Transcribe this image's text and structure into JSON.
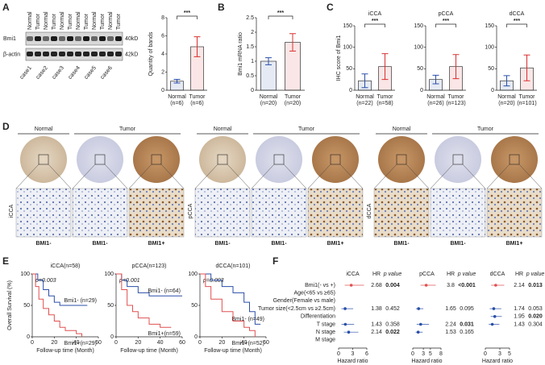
{
  "a": {
    "label": "A",
    "lanes": [
      "Normal",
      "Tumor",
      "Normal",
      "Tumor",
      "Normal",
      "Tumor",
      "Normal",
      "Tumor",
      "Normal",
      "Tumor",
      "Normal",
      "Tumor"
    ],
    "bands": [
      "Bmi1",
      "β-actin"
    ],
    "sizes": [
      "40kD",
      "42kD"
    ],
    "cases": [
      "case1",
      "case2",
      "case3",
      "case4",
      "case5",
      "case6"
    ],
    "chart": {
      "type": "bar",
      "ylabel": "Quantity of bands",
      "categories": [
        "Normal",
        "Tumor"
      ],
      "counts": [
        "(n=6)",
        "(n=6)"
      ],
      "values": [
        1.0,
        4.8
      ],
      "errors": [
        0.2,
        1.1
      ],
      "colors": [
        "#2a4fa8",
        "#d93030"
      ],
      "ylim": [
        0,
        8
      ],
      "yticks": [
        0,
        2,
        4,
        6,
        8
      ],
      "significance": "***"
    }
  },
  "b": {
    "label": "B",
    "chart": {
      "type": "bar",
      "ylabel": "Bmi1 mRNA ratio",
      "categories": [
        "Normal",
        "Tumor"
      ],
      "counts": [
        "(n=20)",
        "(n=20)"
      ],
      "values": [
        1.0,
        1.65
      ],
      "errors": [
        0.12,
        0.3
      ],
      "colors": [
        "#2a4fa8",
        "#d93030"
      ],
      "ylim": [
        0,
        2.5
      ],
      "yticks": [
        0,
        0.5,
        1,
        1.5,
        2,
        2.5
      ],
      "significance": "***"
    }
  },
  "c": {
    "label": "C",
    "ylabel": "IHC score of Bmi1",
    "ylim": [
      0,
      150
    ],
    "yticks": [
      0,
      50,
      100,
      150
    ],
    "colors": [
      "#2a4fa8",
      "#d93030"
    ],
    "charts": [
      {
        "type": "bar",
        "title": "iCCA",
        "categories": [
          "Normal",
          "Tumor"
        ],
        "counts": [
          "(n=22)",
          "(n=58)"
        ],
        "values": [
          22,
          55
        ],
        "errors": [
          16,
          30
        ],
        "significance": "***"
      },
      {
        "type": "bar",
        "title": "pCCA",
        "categories": [
          "Normal",
          "Tumor"
        ],
        "counts": [
          "(n=26)",
          "(n=123)"
        ],
        "values": [
          25,
          55
        ],
        "errors": [
          10,
          28
        ],
        "significance": "***"
      },
      {
        "type": "bar",
        "title": "dCCA",
        "categories": [
          "Normal",
          "Tumor"
        ],
        "counts": [
          "(n=20)",
          "(n=101)"
        ],
        "values": [
          22,
          52
        ],
        "errors": [
          12,
          30
        ],
        "significance": "***"
      }
    ]
  },
  "d": {
    "label": "D",
    "groups": [
      {
        "name": "iCCA",
        "headers": [
          "Normal",
          "Tumor"
        ],
        "captions": [
          "BMI1-",
          "BMI1-",
          "BMI1+"
        ]
      },
      {
        "name": "pCCA",
        "headers": [
          "Normal",
          "Tumor"
        ],
        "captions": [
          "BMI1-",
          "BMI1-",
          "BMI1+"
        ]
      },
      {
        "name": "dCCA",
        "headers": [
          "Normal",
          "Tumor"
        ],
        "captions": [
          "BMI1-",
          "BMI1-",
          "BMI1+"
        ]
      }
    ]
  },
  "e": {
    "label": "E",
    "ylabel": "Overall Survival (%)",
    "xlabel": "Follow-up time (Month)",
    "xlim": [
      0,
      60
    ],
    "xticks": [
      0,
      20,
      40,
      60
    ],
    "ylim": [
      0,
      100
    ],
    "yticks": [
      0,
      50,
      100
    ],
    "charts": [
      {
        "type": "line",
        "title": "iCCA(n=58)",
        "p": "p=0.003",
        "series": [
          {
            "name": "Bmi1- (n=29)",
            "color": "#2a4fa8",
            "x": [
              0,
              5,
              10,
              15,
              20,
              25,
              30,
              40,
              50
            ],
            "values": [
              100,
              90,
              75,
              65,
              55,
              50,
              50,
              50,
              50
            ]
          },
          {
            "name": "Bmi1+(n=29)",
            "color": "#e05050",
            "x": [
              0,
              3,
              6,
              10,
              15,
              20,
              25,
              30,
              40,
              45
            ],
            "values": [
              100,
              80,
              60,
              45,
              35,
              25,
              15,
              10,
              5,
              0
            ]
          }
        ]
      },
      {
        "type": "line",
        "title": "pCCA(n=123)",
        "p": "p<0.001",
        "series": [
          {
            "name": "Bmi1- (n=64)",
            "color": "#2a4fa8",
            "x": [
              0,
              5,
              10,
              20,
              30,
              40,
              50,
              60
            ],
            "values": [
              100,
              90,
              80,
              70,
              65,
              65,
              65,
              65
            ]
          },
          {
            "name": "Bmi1+(n=59)",
            "color": "#e05050",
            "x": [
              0,
              5,
              10,
              15,
              20,
              30,
              40,
              50
            ],
            "values": [
              100,
              75,
              50,
              40,
              30,
              20,
              15,
              15
            ]
          }
        ]
      },
      {
        "type": "line",
        "title": "dCCA(n=101)",
        "p": "p=0.003",
        "series": [
          {
            "name": "Bmi1- (n=49)",
            "color": "#2a4fa8",
            "x": [
              0,
              10,
              20,
              30,
              40,
              45,
              50,
              55
            ],
            "values": [
              100,
              90,
              80,
              70,
              55,
              40,
              20,
              20
            ]
          },
          {
            "name": "Bmi1+(n=52)",
            "color": "#e05050",
            "x": [
              0,
              5,
              10,
              20,
              30,
              40,
              45,
              50
            ],
            "values": [
              100,
              80,
              60,
              40,
              25,
              15,
              10,
              0
            ]
          }
        ]
      }
    ]
  },
  "f": {
    "label": "F",
    "rows": [
      "Bmi1(- vs +)",
      "Age(<65 vs ≥65)",
      "Gender(Female vs male)",
      "Tumor size(<2.5cm vs ≥2.5cm)",
      "Differentiation",
      "T stage",
      "N stage",
      "M stage"
    ],
    "hr_header": "HR",
    "p_header": "p value",
    "xlabel": "Hazard ratio",
    "highlight_color": "#e05050",
    "color": "#2a4fa8",
    "plots": [
      {
        "type": "forest",
        "title": "iCCA",
        "hr": [
          2.68,
          null,
          null,
          1.38,
          null,
          1.43,
          2.14,
          null
        ],
        "ci_low": [
          1.3,
          null,
          null,
          0.6,
          null,
          0.6,
          1.1,
          null
        ],
        "ci_high": [
          5.4,
          null,
          null,
          3.1,
          null,
          3.3,
          4.2,
          null
        ],
        "p": [
          "0.004",
          null,
          null,
          "0.452",
          null,
          "0.358",
          "0.022",
          null
        ],
        "p_bold": [
          true,
          false,
          false,
          false,
          false,
          false,
          true,
          false
        ],
        "xlim": [
          0,
          6
        ],
        "xticks": [
          0,
          3,
          6
        ]
      },
      {
        "type": "forest",
        "title": "pCCA",
        "hr": [
          3.8,
          null,
          null,
          1.65,
          null,
          2.24,
          1.53,
          null
        ],
        "ci_low": [
          2.2,
          null,
          null,
          0.9,
          null,
          1.1,
          0.8,
          null
        ],
        "ci_high": [
          6.5,
          null,
          null,
          3.0,
          null,
          4.6,
          2.8,
          null
        ],
        "p": [
          "<0.001",
          null,
          null,
          "0.095",
          null,
          "0.031",
          "0.165",
          null
        ],
        "p_bold": [
          true,
          false,
          false,
          false,
          false,
          true,
          false,
          false
        ],
        "xlim": [
          0,
          8
        ],
        "xticks": [
          0,
          3,
          5,
          8
        ]
      },
      {
        "type": "forest",
        "title": "dCCA",
        "hr": [
          2.14,
          null,
          null,
          1.74,
          1.95,
          1.43,
          null,
          null
        ],
        "ci_low": [
          1.2,
          null,
          null,
          0.9,
          1.1,
          0.7,
          null,
          null
        ],
        "ci_high": [
          3.9,
          null,
          null,
          3.3,
          3.4,
          2.9,
          null,
          null
        ],
        "p": [
          "0.013",
          null,
          null,
          "0.053",
          "0.020",
          "0.304",
          null,
          null
        ],
        "p_bold": [
          true,
          false,
          false,
          false,
          true,
          false,
          false,
          false
        ],
        "xlim": [
          0,
          5
        ],
        "xticks": [
          0,
          3,
          5
        ]
      }
    ]
  }
}
